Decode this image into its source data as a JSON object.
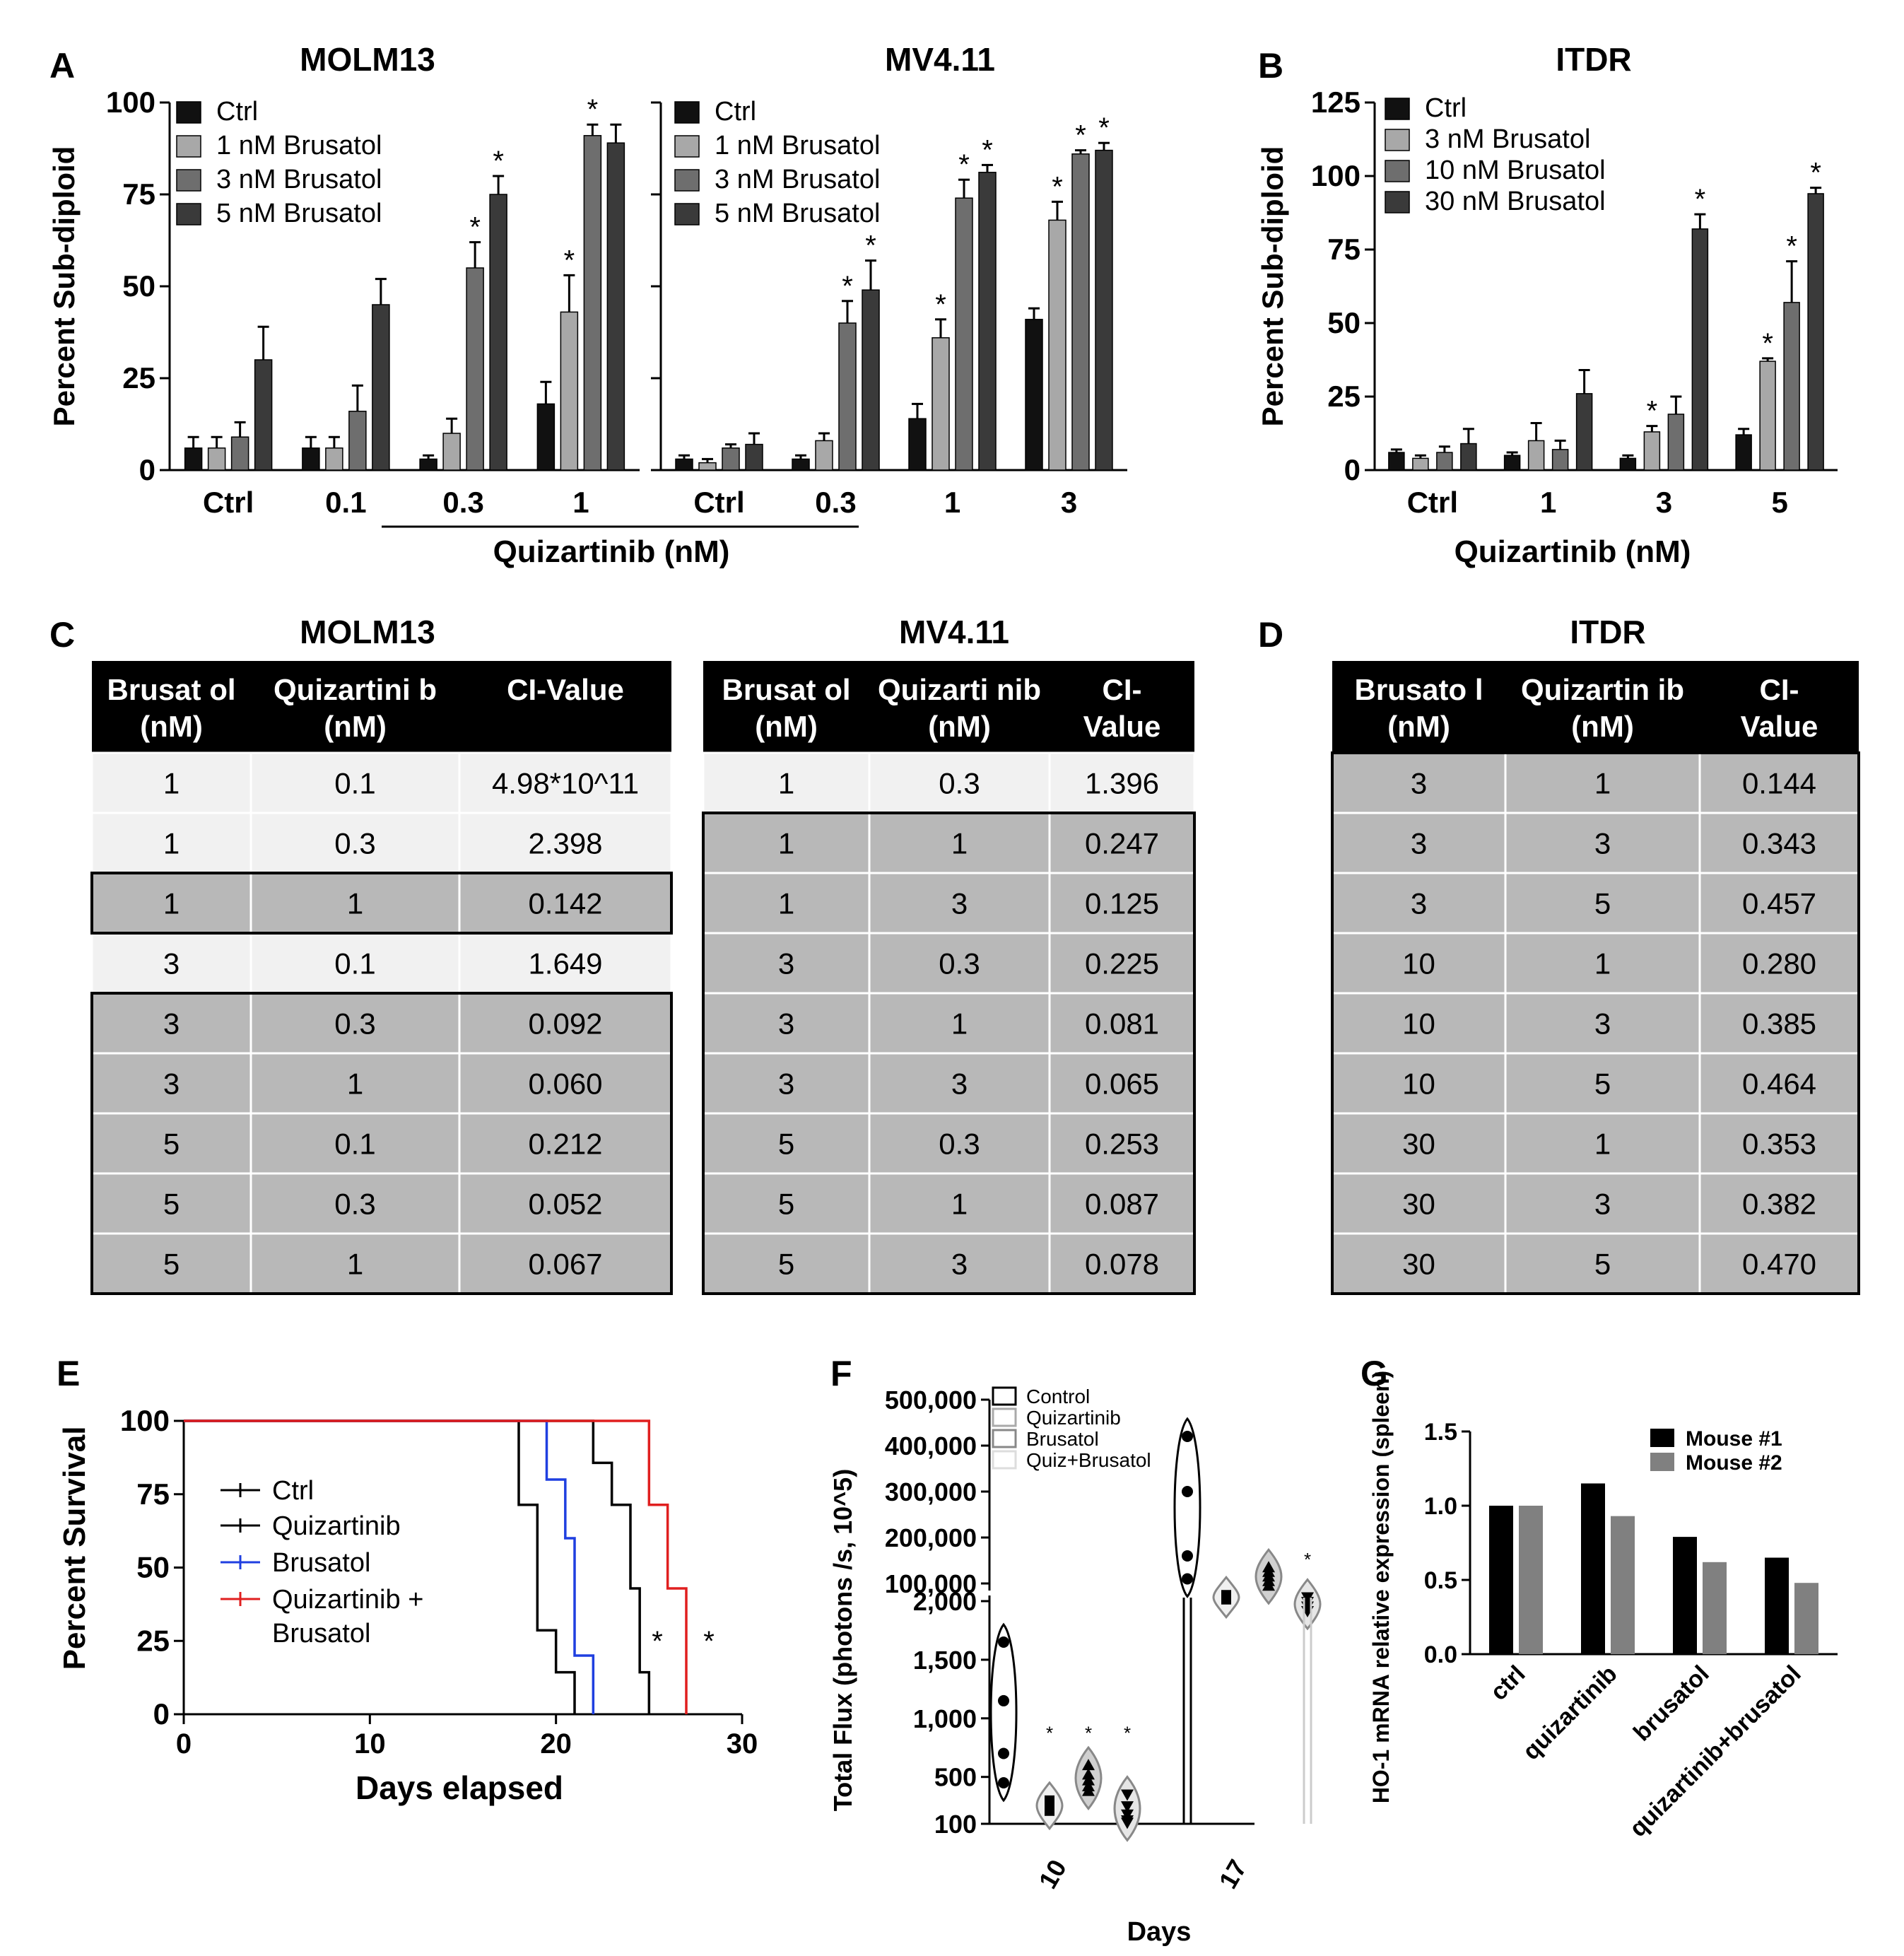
{
  "panel_labels": {
    "A": "A",
    "B": "B",
    "C": "C",
    "D": "D",
    "E": "E",
    "F": "F",
    "G": "G"
  },
  "shared": {
    "quiz_xlabel": "Quizartinib (nM)",
    "sig_mark": "*"
  },
  "colors": {
    "black": "#111111",
    "gray_light": "#a8a8a8",
    "gray_mid": "#6e6e6e",
    "gray_dark": "#3a3a3a",
    "survival_blue": "#1f3fe0",
    "survival_red": "#e01f1f",
    "g_gray": "#808080"
  },
  "chart_data": [
    {
      "id": "A1",
      "type": "bar",
      "title": "MOLM13",
      "ylabel": "Percent Sub-diploid",
      "xlabel": "Quizartinib (nM)",
      "ylim": [
        0,
        100
      ],
      "yticks": [
        "0",
        "25",
        "50",
        "75",
        "100"
      ],
      "categories": [
        "Ctrl",
        "0.1",
        "0.3",
        "1"
      ],
      "series": [
        {
          "name": "Ctrl",
          "values": [
            6,
            6,
            3,
            18
          ],
          "errors": [
            3,
            3,
            1,
            6
          ],
          "sig": [
            false,
            false,
            false,
            false
          ]
        },
        {
          "name": "1 nM Brusatol",
          "values": [
            6,
            6,
            10,
            43
          ],
          "errors": [
            3,
            3,
            4,
            10
          ],
          "sig": [
            false,
            false,
            false,
            true
          ]
        },
        {
          "name": "3 nM Brusatol",
          "values": [
            9,
            16,
            55,
            91
          ],
          "errors": [
            4,
            7,
            7,
            3
          ],
          "sig": [
            false,
            false,
            true,
            true
          ]
        },
        {
          "name": "5 nM Brusatol",
          "values": [
            30,
            45,
            75,
            89
          ],
          "errors": [
            9,
            7,
            5,
            5
          ],
          "sig": [
            false,
            false,
            true,
            false
          ]
        }
      ]
    },
    {
      "id": "A2",
      "type": "bar",
      "title": "MV4.11",
      "ylim": [
        0,
        100
      ],
      "categories": [
        "Ctrl",
        "0.3",
        "1",
        "3"
      ],
      "series": [
        {
          "name": "Ctrl",
          "values": [
            3,
            3,
            14,
            41
          ],
          "errors": [
            1,
            1,
            4,
            3
          ],
          "sig": [
            false,
            false,
            false,
            false
          ]
        },
        {
          "name": "1 nM Brusatol",
          "values": [
            2,
            8,
            36,
            68
          ],
          "errors": [
            1,
            2,
            5,
            5
          ],
          "sig": [
            false,
            false,
            true,
            true
          ]
        },
        {
          "name": "3 nM Brusatol",
          "values": [
            6,
            40,
            74,
            86
          ],
          "errors": [
            1,
            6,
            5,
            1
          ],
          "sig": [
            false,
            true,
            true,
            true
          ]
        },
        {
          "name": "5 nM Brusatol",
          "values": [
            7,
            49,
            81,
            87
          ],
          "errors": [
            3,
            8,
            2,
            2
          ],
          "sig": [
            false,
            true,
            true,
            true
          ]
        }
      ]
    },
    {
      "id": "B",
      "type": "bar",
      "title": "ITDR",
      "ylabel": "Percent Sub-diploid",
      "xlabel": "Quizartinib (nM)",
      "ylim": [
        0,
        125
      ],
      "yticks": [
        "0",
        "25",
        "50",
        "75",
        "100",
        "125"
      ],
      "categories": [
        "Ctrl",
        "1",
        "3",
        "5"
      ],
      "series": [
        {
          "name": "Ctrl",
          "values": [
            6,
            5,
            4,
            12
          ],
          "errors": [
            1,
            1,
            1,
            2
          ],
          "sig": [
            false,
            false,
            false,
            false
          ]
        },
        {
          "name": "3 nM  Brusatol",
          "values": [
            4,
            10,
            13,
            37
          ],
          "errors": [
            1,
            6,
            2,
            1
          ],
          "sig": [
            false,
            false,
            true,
            true
          ]
        },
        {
          "name": "10 nM  Brusatol",
          "values": [
            6,
            7,
            19,
            57
          ],
          "errors": [
            2,
            3,
            6,
            14
          ],
          "sig": [
            false,
            false,
            false,
            true
          ]
        },
        {
          "name": "30 nM  Brusatol",
          "values": [
            9,
            26,
            82,
            94
          ],
          "errors": [
            5,
            8,
            5,
            2
          ],
          "sig": [
            false,
            false,
            true,
            true
          ]
        }
      ]
    },
    {
      "id": "E",
      "type": "line",
      "subtype": "survival-step",
      "ylabel": "Percent Survival",
      "xlabel": "Days elapsed",
      "xlim": [
        0,
        30
      ],
      "ylim": [
        0,
        100
      ],
      "xticks": [
        "0",
        "10",
        "20",
        "30"
      ],
      "yticks": [
        "0",
        "25",
        "50",
        "75",
        "100"
      ],
      "series": [
        {
          "name": "Ctrl",
          "points": [
            [
              0,
              100
            ],
            [
              18,
              100
            ],
            [
              18,
              71.4
            ],
            [
              19,
              71.4
            ],
            [
              19,
              28.6
            ],
            [
              20,
              28.6
            ],
            [
              20,
              14.3
            ],
            [
              21,
              14.3
            ],
            [
              21,
              0
            ]
          ]
        },
        {
          "name": "Quizartinib",
          "points": [
            [
              0,
              100
            ],
            [
              22,
              100
            ],
            [
              22,
              85.7
            ],
            [
              23,
              85.7
            ],
            [
              23,
              71.4
            ],
            [
              24,
              71.4
            ],
            [
              24,
              42.9
            ],
            [
              24.5,
              42.9
            ],
            [
              24.5,
              14.3
            ],
            [
              25,
              14.3
            ],
            [
              25,
              0
            ]
          ]
        },
        {
          "name": "Brusatol",
          "points": [
            [
              0,
              100
            ],
            [
              19.5,
              100
            ],
            [
              19.5,
              80
            ],
            [
              20.5,
              80
            ],
            [
              20.5,
              60
            ],
            [
              21,
              60
            ],
            [
              21,
              20
            ],
            [
              22,
              20
            ],
            [
              22,
              0
            ]
          ]
        },
        {
          "name": "Quizartinib + Brusatol",
          "points": [
            [
              0,
              100
            ],
            [
              25,
              100
            ],
            [
              25,
              71.4
            ],
            [
              26,
              71.4
            ],
            [
              26,
              42.9
            ],
            [
              27,
              42.9
            ],
            [
              27,
              0
            ]
          ]
        }
      ],
      "legend": [
        "Ctrl",
        "Quizartinib",
        "Brusatol",
        "Quizartinib + Brusatol"
      ],
      "annotations": [
        "*",
        "*"
      ]
    },
    {
      "id": "F",
      "type": "scatter",
      "subtype": "violin-broken-axis",
      "ylabel": "Total Flux (photons /s, 10^5)",
      "xlabel": "Days",
      "categories": [
        "10",
        "17"
      ],
      "yticks_upper": [
        "100,000",
        "200,000",
        "300,000",
        "400,000",
        "500,000"
      ],
      "yticks_lower": [
        "100",
        "500",
        "1,000",
        "1,500",
        "2,000"
      ],
      "legend": [
        "Control",
        "Quizartinib",
        "Brusatol",
        "Quiz+Brusatol"
      ],
      "groups_day10": [
        {
          "name": "Control",
          "values": [
            1650,
            1150,
            700,
            450
          ]
        },
        {
          "name": "Quizartinib",
          "values": [
            300,
            260,
            230,
            210,
            280
          ]
        },
        {
          "name": "Brusatol",
          "values": [
            600,
            520,
            470,
            420,
            380
          ]
        },
        {
          "name": "Quiz+Brusatol",
          "values": [
            350,
            250,
            180,
            130,
            110
          ]
        }
      ],
      "groups_day17": [
        {
          "name": "Control",
          "values": [
            420000,
            300000,
            160000,
            110000
          ]
        },
        {
          "name": "Quizartinib",
          "values": [
            75000,
            70000,
            65000,
            72000
          ]
        },
        {
          "name": "Brusatol",
          "values": [
            135000,
            115000,
            95000,
            105000,
            125000
          ]
        },
        {
          "name": "Quiz+Brusatol",
          "values": [
            70000,
            50000,
            40000,
            60000
          ]
        }
      ]
    },
    {
      "id": "G",
      "type": "bar",
      "ylabel": "HO-1 mRNA relative expression (spleen)",
      "ylim": [
        0,
        1.5
      ],
      "yticks": [
        "0.0",
        "0.5",
        "1.0",
        "1.5"
      ],
      "categories": [
        "ctrl",
        "quizartinib",
        "brusatol",
        "quizartinib+brusatol"
      ],
      "series": [
        {
          "name": "Mouse #1",
          "values": [
            1.0,
            1.15,
            0.79,
            0.65
          ]
        },
        {
          "name": "Mouse #2",
          "values": [
            1.0,
            0.93,
            0.62,
            0.48
          ]
        }
      ]
    }
  ],
  "tables": {
    "molm13": {
      "title": "MOLM13",
      "headers": [
        "Brusat ol (nM)",
        "Quizartini b (nM)",
        "CI-Value"
      ],
      "rows": [
        [
          "1",
          "0.1",
          "4.98*10^11"
        ],
        [
          "1",
          "0.3",
          "2.398"
        ],
        [
          "1",
          "1",
          "0.142"
        ],
        [
          "3",
          "0.1",
          "1.649"
        ],
        [
          "3",
          "0.3",
          "0.092"
        ],
        [
          "3",
          "1",
          "0.060"
        ],
        [
          "5",
          "0.1",
          "0.212"
        ],
        [
          "5",
          "0.3",
          "0.052"
        ],
        [
          "5",
          "1",
          "0.067"
        ]
      ],
      "synergy": [
        false,
        false,
        true,
        false,
        true,
        true,
        true,
        true,
        true
      ]
    },
    "mv411": {
      "title": "MV4.11",
      "headers": [
        "Brusat ol (nM)",
        "Quizarti nib (nM)",
        "CI- Value"
      ],
      "rows": [
        [
          "1",
          "0.3",
          "1.396"
        ],
        [
          "1",
          "1",
          "0.247"
        ],
        [
          "1",
          "3",
          "0.125"
        ],
        [
          "3",
          "0.3",
          "0.225"
        ],
        [
          "3",
          "1",
          "0.081"
        ],
        [
          "3",
          "3",
          "0.065"
        ],
        [
          "5",
          "0.3",
          "0.253"
        ],
        [
          "5",
          "1",
          "0.087"
        ],
        [
          "5",
          "3",
          "0.078"
        ]
      ],
      "synergy": [
        false,
        true,
        true,
        true,
        true,
        true,
        true,
        true,
        true
      ]
    },
    "itdr": {
      "title": "ITDR",
      "headers": [
        "Brusato l (nM)",
        "Quizartin ib (nM)",
        "CI- Value"
      ],
      "rows": [
        [
          "3",
          "1",
          "0.144"
        ],
        [
          "3",
          "3",
          "0.343"
        ],
        [
          "3",
          "5",
          "0.457"
        ],
        [
          "10",
          "1",
          "0.280"
        ],
        [
          "10",
          "3",
          "0.385"
        ],
        [
          "10",
          "5",
          "0.464"
        ],
        [
          "30",
          "1",
          "0.353"
        ],
        [
          "30",
          "3",
          "0.382"
        ],
        [
          "30",
          "5",
          "0.470"
        ]
      ],
      "synergy": [
        true,
        true,
        true,
        true,
        true,
        true,
        true,
        true,
        true
      ]
    }
  }
}
